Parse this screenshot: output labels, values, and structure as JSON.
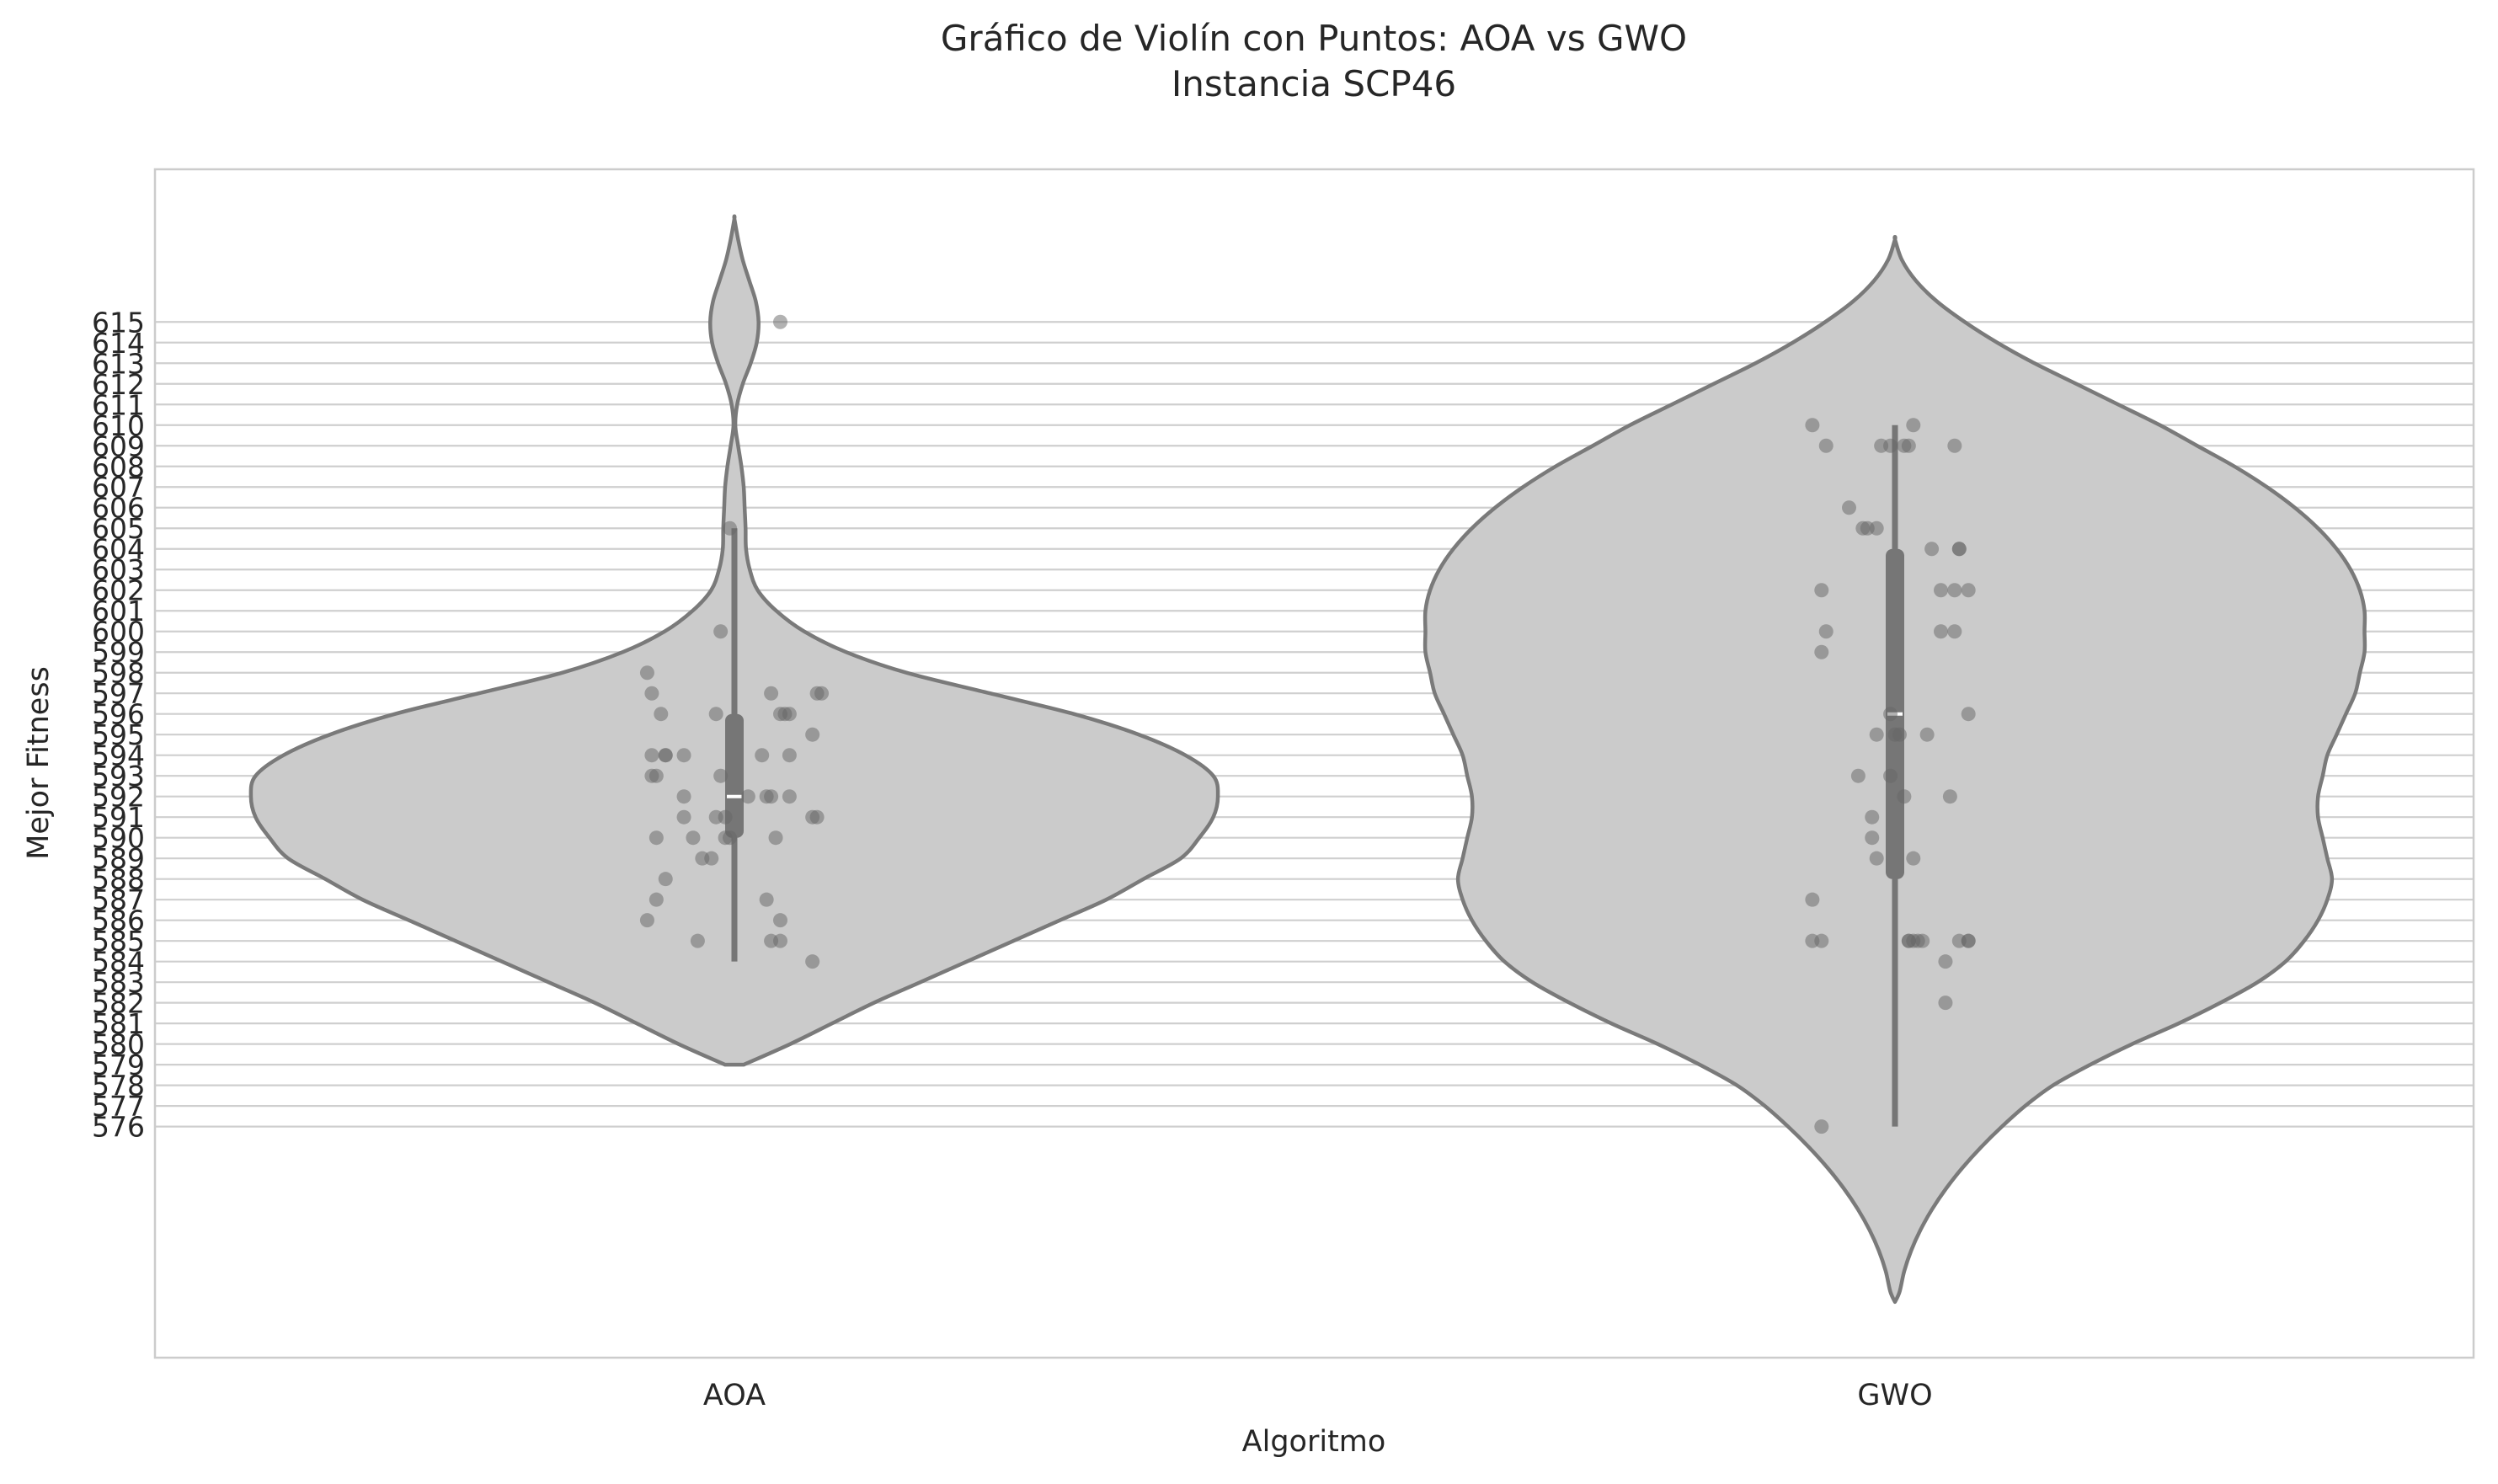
{
  "chart_data": {
    "type": "violin",
    "title": "Gráfico de Violín con Puntos: AOA vs GWO",
    "subtitle": "Instancia SCP46",
    "xlabel": "Algoritmo",
    "ylabel": "Mejor Fitness",
    "categories": [
      "AOA",
      "GWO"
    ],
    "y_ticks": [
      576,
      577,
      578,
      579,
      580,
      581,
      582,
      583,
      584,
      585,
      586,
      587,
      588,
      589,
      590,
      591,
      592,
      593,
      594,
      595,
      596,
      597,
      598,
      599,
      600,
      601,
      602,
      603,
      604,
      605,
      606,
      607,
      608,
      609,
      610,
      611,
      612,
      613,
      614,
      615
    ],
    "ylim": [
      564.8,
      622.4
    ],
    "grid": true,
    "series": [
      {
        "category": "AOA",
        "median": 592,
        "q1": 590,
        "q3": 596,
        "whisker_low": 584,
        "whisker_high": 605,
        "violin_range": [
          579,
          620
        ],
        "density": [
          [
            579,
            0.02
          ],
          [
            580,
            0.12
          ],
          [
            581,
            0.21
          ],
          [
            582,
            0.3
          ],
          [
            583,
            0.4
          ],
          [
            584,
            0.5
          ],
          [
            585,
            0.6
          ],
          [
            586,
            0.7
          ],
          [
            587,
            0.8
          ],
          [
            588,
            0.88
          ],
          [
            589,
            0.96
          ],
          [
            590,
            1.0
          ],
          [
            591,
            1.03
          ],
          [
            592,
            1.04
          ],
          [
            593,
            1.03
          ],
          [
            594,
            0.97
          ],
          [
            595,
            0.87
          ],
          [
            596,
            0.73
          ],
          [
            597,
            0.55
          ],
          [
            598,
            0.37
          ],
          [
            599,
            0.24
          ],
          [
            600,
            0.15
          ],
          [
            601,
            0.09
          ],
          [
            602,
            0.05
          ],
          [
            603,
            0.033
          ],
          [
            604,
            0.025
          ],
          [
            605,
            0.024
          ],
          [
            606,
            0.022
          ],
          [
            607,
            0.02
          ],
          [
            608,
            0.015
          ],
          [
            609,
            0.008
          ],
          [
            610,
            0.002
          ],
          [
            611,
            0.006
          ],
          [
            612,
            0.018
          ],
          [
            613,
            0.035
          ],
          [
            614,
            0.048
          ],
          [
            615,
            0.052
          ],
          [
            616,
            0.046
          ],
          [
            617,
            0.032
          ],
          [
            618,
            0.018
          ],
          [
            619,
            0.008
          ],
          [
            620,
            0.0
          ]
        ],
        "points": [
          [
            -0.19,
            598
          ],
          [
            -0.18,
            597
          ],
          [
            -0.16,
            596
          ],
          [
            -0.18,
            594
          ],
          [
            -0.18,
            593
          ],
          [
            -0.17,
            593
          ],
          [
            -0.15,
            594
          ],
          [
            -0.15,
            594
          ],
          [
            -0.11,
            594
          ],
          [
            -0.11,
            592
          ],
          [
            -0.11,
            591
          ],
          [
            -0.09,
            590
          ],
          [
            -0.07,
            589
          ],
          [
            -0.04,
            596
          ],
          [
            -0.04,
            591
          ],
          [
            -0.05,
            589
          ],
          [
            -0.03,
            593
          ],
          [
            -0.02,
            591
          ],
          [
            -0.02,
            590
          ],
          [
            -0.01,
            590
          ],
          [
            -0.03,
            600
          ],
          [
            -0.01,
            605
          ],
          [
            -0.17,
            590
          ],
          [
            -0.15,
            588
          ],
          [
            -0.17,
            587
          ],
          [
            -0.19,
            586
          ],
          [
            -0.08,
            585
          ],
          [
            0.03,
            592
          ],
          [
            0.06,
            594
          ],
          [
            0.07,
            592
          ],
          [
            0.07,
            587
          ],
          [
            0.08,
            597
          ],
          [
            0.08,
            592
          ],
          [
            0.09,
            590
          ],
          [
            0.1,
            586
          ],
          [
            0.08,
            585
          ],
          [
            0.1,
            585
          ],
          [
            0.1,
            596
          ],
          [
            0.12,
            596
          ],
          [
            0.12,
            592
          ],
          [
            0.12,
            594
          ],
          [
            0.1,
            615
          ],
          [
            0.17,
            595
          ],
          [
            0.17,
            591
          ],
          [
            0.18,
            591
          ],
          [
            0.18,
            597
          ],
          [
            0.19,
            597
          ],
          [
            0.17,
            584
          ],
          [
            0.11,
            596
          ]
        ]
      },
      {
        "category": "GWO",
        "median": 596,
        "q1": 588,
        "q3": 604,
        "whisker_low": 576,
        "whisker_high": 610,
        "violin_range": [
          567.5,
          619
        ],
        "density": [
          [
            567.5,
            0.0
          ],
          [
            568,
            0.01
          ],
          [
            569,
            0.02
          ],
          [
            570,
            0.035
          ],
          [
            571,
            0.055
          ],
          [
            572,
            0.08
          ],
          [
            573,
            0.11
          ],
          [
            574,
            0.145
          ],
          [
            575,
            0.185
          ],
          [
            576,
            0.23
          ],
          [
            577,
            0.28
          ],
          [
            578,
            0.34
          ],
          [
            579,
            0.42
          ],
          [
            580,
            0.51
          ],
          [
            581,
            0.61
          ],
          [
            582,
            0.7
          ],
          [
            583,
            0.78
          ],
          [
            584,
            0.84
          ],
          [
            585,
            0.88
          ],
          [
            586,
            0.91
          ],
          [
            587,
            0.93
          ],
          [
            588,
            0.94
          ],
          [
            589,
            0.93
          ],
          [
            590,
            0.92
          ],
          [
            591,
            0.91
          ],
          [
            592,
            0.91
          ],
          [
            593,
            0.92
          ],
          [
            594,
            0.93
          ],
          [
            595,
            0.95
          ],
          [
            596,
            0.97
          ],
          [
            597,
            0.99
          ],
          [
            598,
            1.0
          ],
          [
            599,
            1.01
          ],
          [
            600,
            1.01
          ],
          [
            601,
            1.01
          ],
          [
            602,
            1.0
          ],
          [
            603,
            0.98
          ],
          [
            604,
            0.95
          ],
          [
            605,
            0.91
          ],
          [
            606,
            0.86
          ],
          [
            607,
            0.8
          ],
          [
            608,
            0.73
          ],
          [
            609,
            0.65
          ],
          [
            610,
            0.57
          ],
          [
            611,
            0.48
          ],
          [
            612,
            0.39
          ],
          [
            613,
            0.3
          ],
          [
            614,
            0.22
          ],
          [
            615,
            0.15
          ],
          [
            616,
            0.09
          ],
          [
            617,
            0.045
          ],
          [
            618,
            0.015
          ],
          [
            619,
            0.0
          ]
        ],
        "points": [
          [
            -0.18,
            610
          ],
          [
            -0.15,
            609
          ],
          [
            -0.1,
            606
          ],
          [
            -0.07,
            605
          ],
          [
            -0.06,
            605
          ],
          [
            -0.04,
            605
          ],
          [
            -0.03,
            609
          ],
          [
            -0.01,
            609
          ],
          [
            0.02,
            609
          ],
          [
            0.03,
            609
          ],
          [
            0.04,
            610
          ],
          [
            -0.16,
            602
          ],
          [
            -0.15,
            600
          ],
          [
            -0.16,
            599
          ],
          [
            -0.04,
            595
          ],
          [
            -0.08,
            593
          ],
          [
            -0.05,
            591
          ],
          [
            -0.05,
            590
          ],
          [
            -0.04,
            589
          ],
          [
            -0.01,
            596
          ],
          [
            0.0,
            595
          ],
          [
            0.01,
            595
          ],
          [
            0.02,
            592
          ],
          [
            0.04,
            589
          ],
          [
            0.07,
            595
          ],
          [
            -0.18,
            587
          ],
          [
            -0.18,
            585
          ],
          [
            -0.16,
            585
          ],
          [
            0.03,
            585
          ],
          [
            0.03,
            585
          ],
          [
            0.04,
            585
          ],
          [
            0.05,
            585
          ],
          [
            0.06,
            585
          ],
          [
            0.08,
            604
          ],
          [
            0.1,
            600
          ],
          [
            0.1,
            602
          ],
          [
            0.12,
            592
          ],
          [
            0.13,
            600
          ],
          [
            0.13,
            602
          ],
          [
            0.14,
            604
          ],
          [
            0.14,
            604
          ],
          [
            0.16,
            602
          ],
          [
            0.16,
            596
          ],
          [
            0.16,
            585
          ],
          [
            0.16,
            585
          ],
          [
            0.14,
            585
          ],
          [
            0.11,
            584
          ],
          [
            0.11,
            582
          ],
          [
            -0.16,
            576
          ],
          [
            0.13,
            609
          ],
          [
            -0.01,
            593
          ]
        ]
      }
    ]
  }
}
